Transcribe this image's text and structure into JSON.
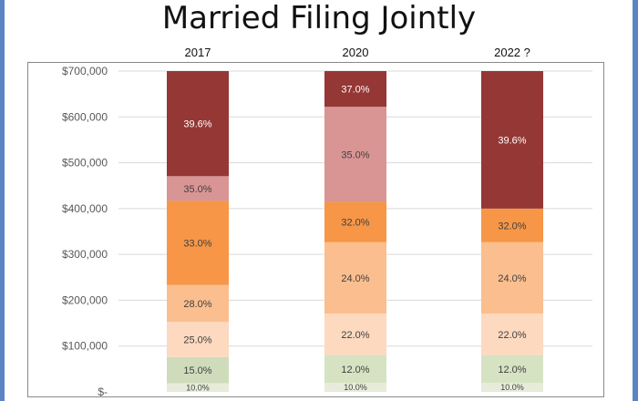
{
  "chart_data": {
    "type": "bar",
    "stacked": true,
    "title": "Married Filing Jointly",
    "xlabel": "",
    "ylabel": "",
    "categories": [
      "2017",
      "2020",
      "2022 ?"
    ],
    "ylim": [
      0,
      700000
    ],
    "y_ticks": [
      {
        "value": 0,
        "label": "$-"
      },
      {
        "value": 100000,
        "label": "$100,000"
      },
      {
        "value": 200000,
        "label": "$200,000"
      },
      {
        "value": 300000,
        "label": "$300,000"
      },
      {
        "value": 400000,
        "label": "$400,000"
      },
      {
        "value": 500000,
        "label": "$500,000"
      },
      {
        "value": 600000,
        "label": "$600,000"
      },
      {
        "value": 700000,
        "label": "$700,000"
      }
    ],
    "grid": true,
    "legend": "none",
    "bars": [
      {
        "category": "2017",
        "segments": [
          {
            "from": 0,
            "to": 18650,
            "label": "10.0%",
            "color": "#e6ecd9"
          },
          {
            "from": 18650,
            "to": 75900,
            "label": "15.0%",
            "color": "#cfdcbc"
          },
          {
            "from": 75900,
            "to": 153100,
            "label": "25.0%",
            "color": "#fcd9bf"
          },
          {
            "from": 153100,
            "to": 233350,
            "label": "28.0%",
            "color": "#fbbe8e"
          },
          {
            "from": 233350,
            "to": 416700,
            "label": "33.0%",
            "color": "#f79646"
          },
          {
            "from": 416700,
            "to": 470700,
            "label": "35.0%",
            "color": "#d99594"
          },
          {
            "from": 470700,
            "to": 700000,
            "label": "39.6%",
            "color": "#953735"
          }
        ]
      },
      {
        "category": "2020",
        "segments": [
          {
            "from": 0,
            "to": 19750,
            "label": "10.0%",
            "color": "#e6ecd9"
          },
          {
            "from": 19750,
            "to": 80250,
            "label": "12.0%",
            "color": "#d6e3c3"
          },
          {
            "from": 80250,
            "to": 171050,
            "label": "22.0%",
            "color": "#fcd9bf"
          },
          {
            "from": 171050,
            "to": 326600,
            "label": "24.0%",
            "color": "#fbbe8e"
          },
          {
            "from": 326600,
            "to": 414700,
            "label": "32.0%",
            "color": "#f79646"
          },
          {
            "from": 414700,
            "to": 622050,
            "label": "35.0%",
            "color": "#d99594"
          },
          {
            "from": 622050,
            "to": 700000,
            "label": "37.0%",
            "color": "#953735"
          }
        ]
      },
      {
        "category": "2022 ?",
        "segments": [
          {
            "from": 0,
            "to": 19750,
            "label": "10.0%",
            "color": "#e6ecd9"
          },
          {
            "from": 19750,
            "to": 80250,
            "label": "12.0%",
            "color": "#d6e3c3"
          },
          {
            "from": 80250,
            "to": 171050,
            "label": "22.0%",
            "color": "#fcd9bf"
          },
          {
            "from": 171050,
            "to": 326600,
            "label": "24.0%",
            "color": "#fbbe8e"
          },
          {
            "from": 326600,
            "to": 400000,
            "label": "32.0%",
            "color": "#f79646"
          },
          {
            "from": 400000,
            "to": 700000,
            "label": "39.6%",
            "color": "#953735"
          }
        ]
      }
    ]
  }
}
